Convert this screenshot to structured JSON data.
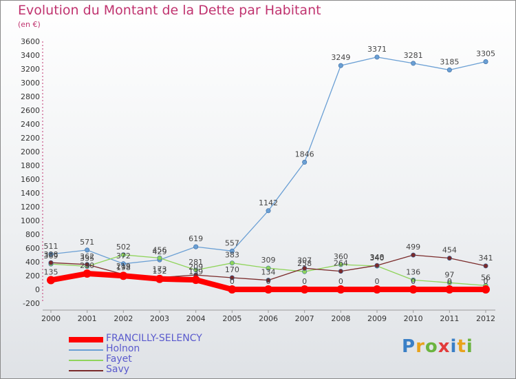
{
  "header": {
    "title": "Evolution du Montant de la Dette par Habitant",
    "subtitle": "(en €)"
  },
  "logo": {
    "text": "Proxiti",
    "colors": [
      "#3a7fc6",
      "#e8a21b",
      "#6bb43f",
      "#e23b3b",
      "#3a7fc6",
      "#e8a21b",
      "#6bb43f"
    ]
  },
  "colors": {
    "title": "#c0336f",
    "grid_tick": "#c0336f",
    "axis_text": "#333333",
    "legend_text": "#5a5acd"
  },
  "chart_data": {
    "type": "line",
    "title": "Evolution du Montant de la Dette par Habitant",
    "subtitle": "(en €)",
    "x": [
      "2000",
      "2001",
      "2002",
      "2003",
      "2004",
      "2005",
      "2006",
      "2007",
      "2008",
      "2009",
      "2010",
      "2011",
      "2012"
    ],
    "ylim": [
      -200,
      3600
    ],
    "yticks": [
      -200,
      0,
      200,
      400,
      600,
      800,
      1000,
      1200,
      1400,
      1600,
      1800,
      2000,
      2200,
      2400,
      2600,
      2800,
      3000,
      3200,
      3400,
      3600
    ],
    "grid": false,
    "legend_position": "bottom-left",
    "series": [
      {
        "name": "FRANCILLY-SELENCY",
        "color": "#ff0000",
        "values": [
          135,
          230,
          198,
          152,
          139,
          0,
          0,
          0,
          0,
          0,
          0,
          0,
          0
        ],
        "labels": [
          "135",
          "230",
          "198",
          "152",
          "139",
          "0",
          "0",
          "0",
          "0",
          "0",
          "0",
          "0",
          "0"
        ],
        "thick": true
      },
      {
        "name": "Holnon",
        "color": "#6a9fd4",
        "values": [
          511,
          571,
          372,
          429,
          619,
          557,
          1142,
          1846,
          3249,
          3371,
          3281,
          3185,
          3305
        ],
        "labels": [
          "511",
          "571",
          "372",
          "429",
          "619",
          "557",
          "1142",
          "1846",
          "3249",
          "3371",
          "3281",
          "3185",
          "3305"
        ]
      },
      {
        "name": "Fayet",
        "color": "#8fd45a",
        "values": [
          369,
          335,
          502,
          456,
          281,
          383,
          309,
          258,
          360,
          340,
          136,
          97,
          56
        ],
        "labels": [
          "369",
          "335",
          "502",
          "456",
          "281",
          "383",
          "309",
          "258",
          "360",
          "340",
          "136",
          "97",
          "56"
        ]
      },
      {
        "name": "Savy",
        "color": "#7a2a2a",
        "values": [
          388,
          362,
          219,
          173,
          209,
          170,
          134,
          307,
          264,
          348,
          499,
          454,
          341
        ],
        "labels": [
          "388",
          "362",
          "219",
          "173",
          "209",
          "170",
          "134",
          "307",
          "264",
          "348",
          "499",
          "454",
          "341"
        ]
      }
    ]
  }
}
